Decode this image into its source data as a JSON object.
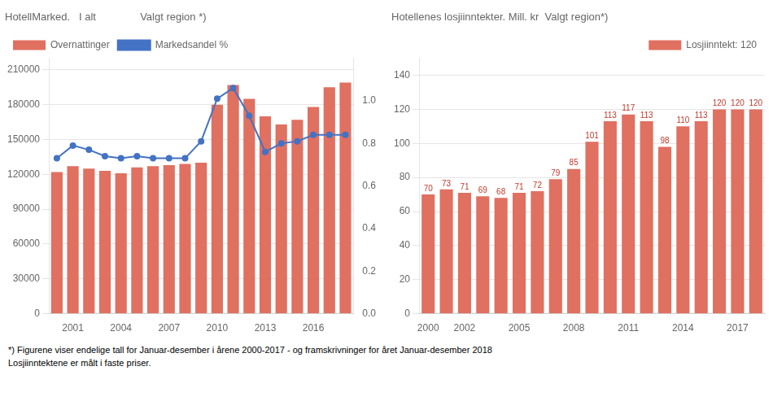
{
  "chart_data": [
    {
      "type": "bar",
      "title": "HotellMarked.   I alt               Valgt region *)",
      "categories": [
        null,
        2001,
        null,
        null,
        2004,
        null,
        null,
        2007,
        null,
        null,
        2010,
        null,
        null,
        2013,
        null,
        null,
        2016,
        null,
        null
      ],
      "series": [
        {
          "name": "Overnattinger",
          "type": "bar",
          "color": "#E07060",
          "values": [
            122000,
            127000,
            125000,
            123000,
            121000,
            126000,
            127000,
            128000,
            129000,
            130000,
            180000,
            197000,
            185000,
            170000,
            163000,
            167000,
            178000,
            195000,
            199000
          ]
        },
        {
          "name": "Markedsandel %",
          "type": "line",
          "color": "#4472C4",
          "marker": "circle",
          "axis": "y2",
          "values": [
            0.73,
            0.79,
            0.77,
            0.74,
            0.73,
            0.74,
            0.73,
            0.73,
            0.73,
            0.81,
            1.01,
            1.06,
            0.93,
            0.76,
            0.8,
            0.81,
            0.84,
            0.84,
            0.84
          ]
        }
      ],
      "ylim": [
        0,
        220000
      ],
      "yticks": [
        0,
        30000,
        60000,
        90000,
        120000,
        150000,
        180000,
        210000
      ],
      "y2lim": [
        0,
        1.2
      ],
      "y2ticks": [
        {
          "value": 0,
          "label": "0.0"
        },
        0.2,
        0.4,
        0.6,
        0.8,
        {
          "value": 1,
          "label": "1.0"
        }
      ],
      "grid": true,
      "legend": "upper left"
    },
    {
      "type": "bar",
      "title": "Hotellenes losjiinntekter. Mill. kr  Valgt region*)",
      "categories": [
        2000,
        null,
        2002,
        null,
        null,
        2005,
        null,
        null,
        2008,
        null,
        null,
        2011,
        null,
        null,
        2014,
        null,
        null,
        2017,
        null
      ],
      "series": [
        {
          "name": "Losjiinntekt: 120",
          "color": "#E07060",
          "values": [
            70,
            73,
            71,
            69,
            68,
            71,
            72,
            79,
            85,
            101,
            113,
            117,
            113,
            98,
            110,
            113,
            120,
            120,
            120
          ]
        }
      ],
      "ylim": [
        0,
        150
      ],
      "yticks": [
        0,
        20,
        40,
        60,
        80,
        100,
        120,
        140
      ],
      "grid": true,
      "legend": "upper right",
      "data_labels": true
    }
  ],
  "footer": [
    "*) Figurene viser endelige tall for Januar-desember i årene 2000-2017 - og framskrivninger for året Januar-desember 2018",
    "Losjiinntektene er målt i faste priser."
  ]
}
